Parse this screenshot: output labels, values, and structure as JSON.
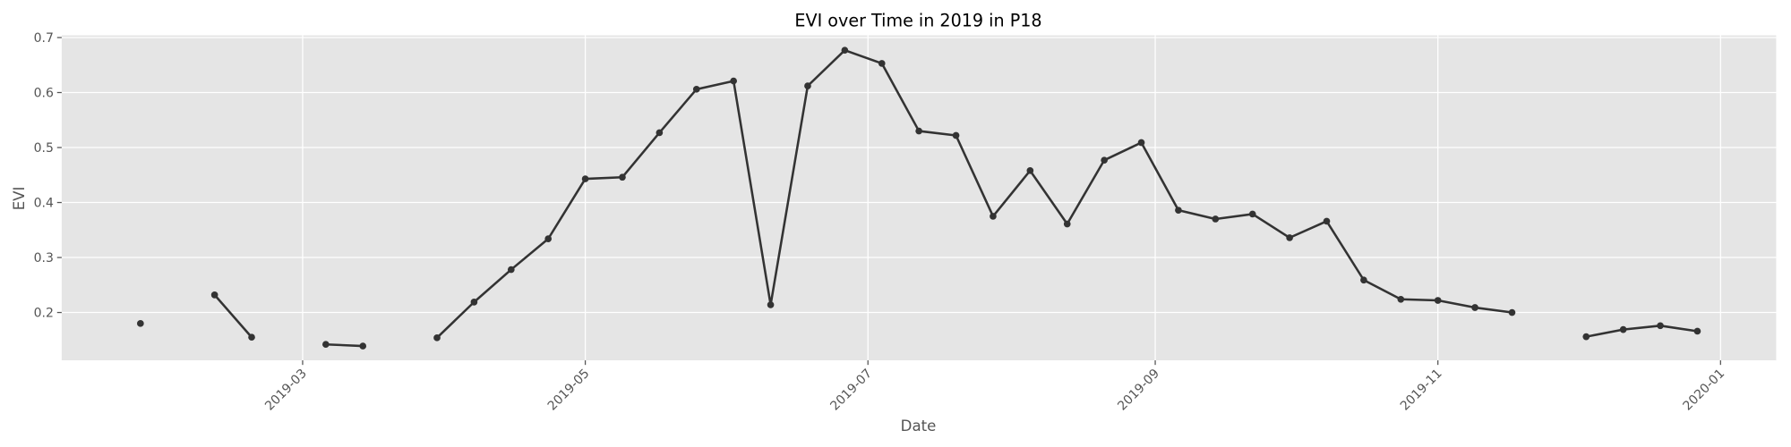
{
  "chart_data": {
    "type": "line",
    "title": "EVI over Time in 2019 in P18",
    "xlabel": "Date",
    "ylabel": "EVI",
    "x": [
      17921,
      17929,
      17937,
      17945,
      17953,
      17961,
      17969,
      17977,
      17985,
      17993,
      18001,
      18009,
      18017,
      18025,
      18033,
      18041,
      18049,
      18057,
      18065,
      18073,
      18081,
      18089,
      18097,
      18105,
      18113,
      18121,
      18129,
      18137,
      18145,
      18153,
      18161,
      18169,
      18177,
      18185,
      18193,
      18201,
      18209,
      18217,
      18225,
      18233,
      18241,
      18249,
      18257
    ],
    "values": [
      0.18,
      null,
      0.232,
      0.155,
      null,
      0.142,
      0.139,
      null,
      0.154,
      0.219,
      0.278,
      0.334,
      0.443,
      0.446,
      0.527,
      0.606,
      0.621,
      0.214,
      0.612,
      0.677,
      0.653,
      0.53,
      0.522,
      0.375,
      0.458,
      0.361,
      0.477,
      0.509,
      0.386,
      0.37,
      0.379,
      0.336,
      0.366,
      0.259,
      0.224,
      0.222,
      0.209,
      0.2,
      null,
      0.156,
      0.169,
      0.176,
      0.166
    ],
    "color": "#333333",
    "xlim": [
      17904,
      18274
    ],
    "xticks": [
      {
        "value": 17956,
        "label": "2019-03"
      },
      {
        "value": 18017,
        "label": "2019-05"
      },
      {
        "value": 18078,
        "label": "2019-07"
      },
      {
        "value": 18140,
        "label": "2019-09"
      },
      {
        "value": 18201,
        "label": "2019-11"
      },
      {
        "value": 18262,
        "label": "2020-01"
      }
    ],
    "ylim": [
      0.113,
      0.704
    ],
    "yticks": [
      0.2,
      0.3,
      0.4,
      0.5,
      0.6,
      0.7
    ],
    "grid": true
  }
}
